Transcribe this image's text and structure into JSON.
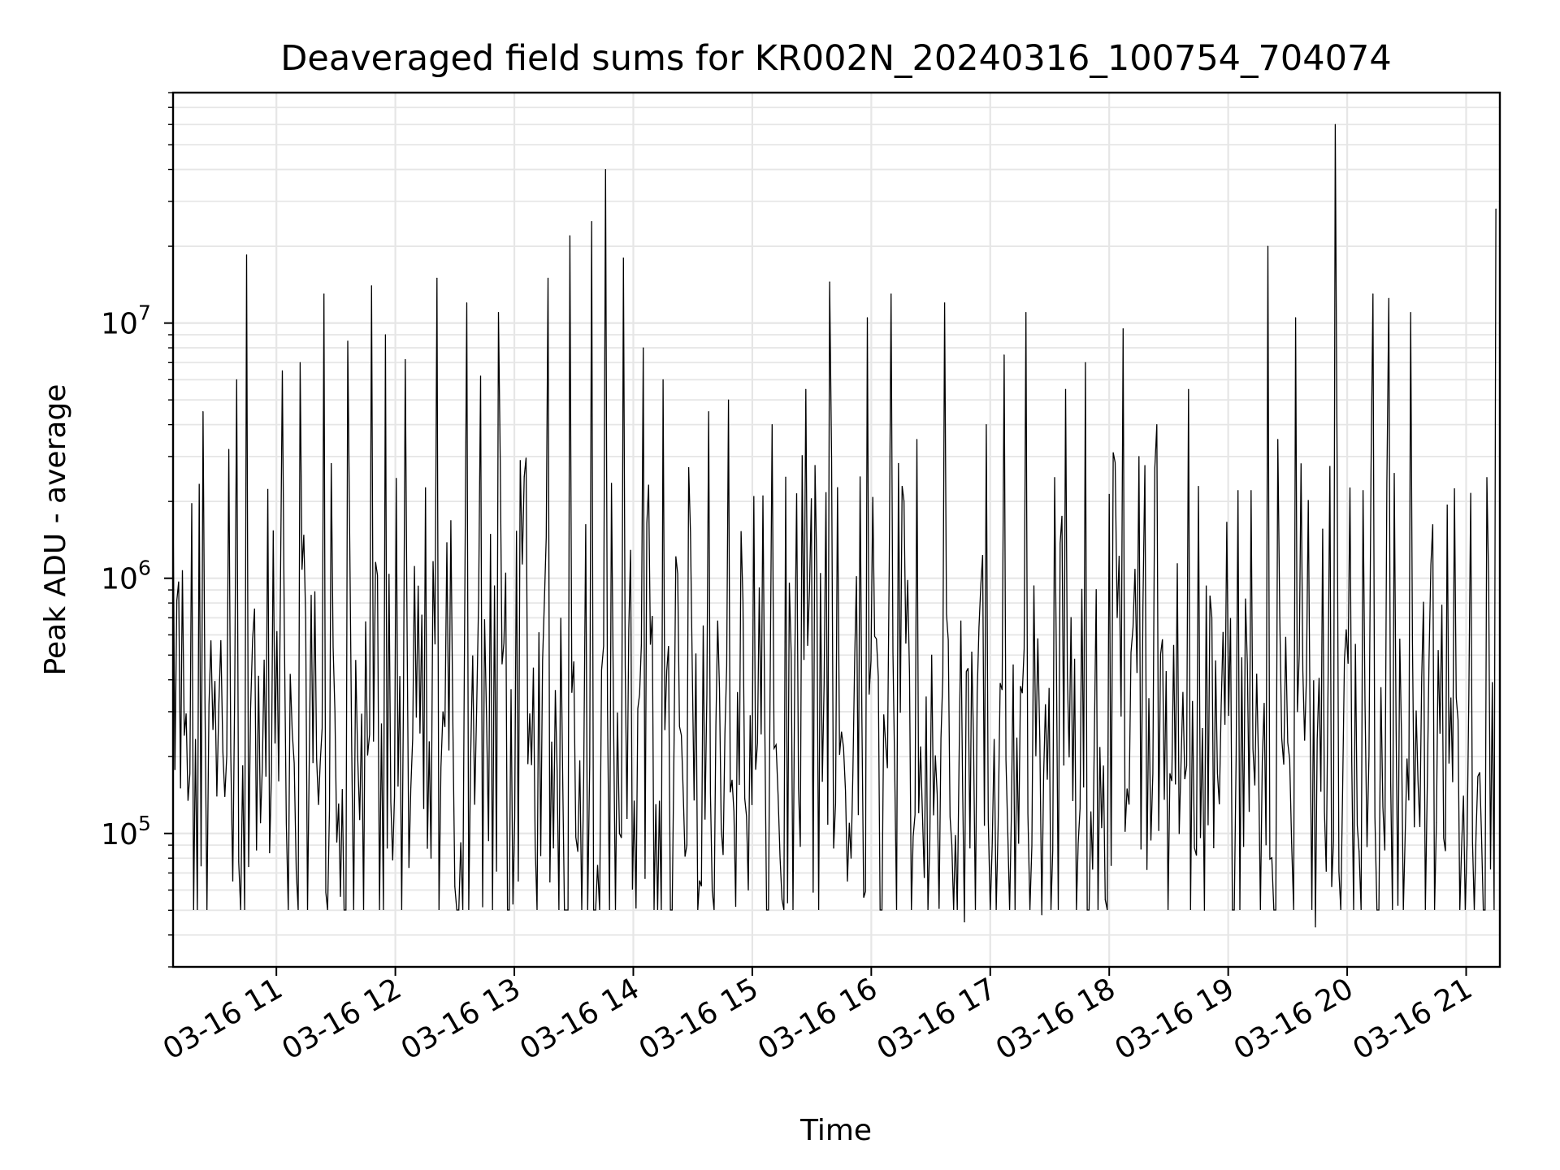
{
  "chart_data": {
    "type": "line",
    "title": "Deaveraged field sums for KR002N_20240316_100754_704074",
    "xlabel": "Time",
    "ylabel": "Peak ADU - average",
    "y_scale": "log",
    "grid": true,
    "grid_color": "#e6e6e6",
    "line_color": "#000000",
    "xlim": [
      "2024-03-16 10:07:54",
      "2024-03-16 21:17:00"
    ],
    "ylim": [
      30000,
      80000000
    ],
    "x_ticks": [
      {
        "value": "2024-03-16 11:00",
        "label": "03-16 11"
      },
      {
        "value": "2024-03-16 12:00",
        "label": "03-16 12"
      },
      {
        "value": "2024-03-16 13:00",
        "label": "03-16 13"
      },
      {
        "value": "2024-03-16 14:00",
        "label": "03-16 14"
      },
      {
        "value": "2024-03-16 15:00",
        "label": "03-16 15"
      },
      {
        "value": "2024-03-16 16:00",
        "label": "03-16 16"
      },
      {
        "value": "2024-03-16 17:00",
        "label": "03-16 17"
      },
      {
        "value": "2024-03-16 18:00",
        "label": "03-16 18"
      },
      {
        "value": "2024-03-16 19:00",
        "label": "03-16 19"
      },
      {
        "value": "2024-03-16 20:00",
        "label": "03-16 20"
      },
      {
        "value": "2024-03-16 21:00",
        "label": "03-16 21"
      }
    ],
    "y_ticks": [
      {
        "value": 100000,
        "base": "10",
        "exp": "5"
      },
      {
        "value": 1000000,
        "base": "10",
        "exp": "6"
      },
      {
        "value": 10000000,
        "base": "10",
        "exp": "7"
      }
    ],
    "series": [
      {
        "x": [
          "2024-03-16 10:07:54",
          "2024-03-16 10:23:00",
          "2024-03-16 10:30:00",
          "2024-03-16 10:36:00",
          "2024-03-16 10:40:00",
          "2024-03-16 10:45:00",
          "2024-03-16 10:52:00",
          "2024-03-16 11:03:00",
          "2024-03-16 11:12:00",
          "2024-03-16 11:24:00",
          "2024-03-16 11:36:00",
          "2024-03-16 11:41:00",
          "2024-03-16 11:48:00",
          "2024-03-16 11:55:00",
          "2024-03-16 12:05:00",
          "2024-03-16 12:18:00",
          "2024-03-16 12:21:00",
          "2024-03-16 12:30:00",
          "2024-03-16 12:36:00",
          "2024-03-16 12:43:00",
          "2024-03-16 12:52:00",
          "2024-03-16 13:02:00",
          "2024-03-16 13:05:00",
          "2024-03-16 13:17:00",
          "2024-03-16 13:28:00",
          "2024-03-16 13:32:00",
          "2024-03-16 13:39:00",
          "2024-03-16 13:46:00",
          "2024-03-16 13:53:00",
          "2024-03-16 13:55:00",
          "2024-03-16 14:05:00",
          "2024-03-16 14:15:00",
          "2024-03-16 14:27:00",
          "2024-03-16 14:38:00",
          "2024-03-16 14:48:00",
          "2024-03-16 14:58:00",
          "2024-03-16 15:10:00",
          "2024-03-16 15:15:00",
          "2024-03-16 15:27:00",
          "2024-03-16 15:39:00",
          "2024-03-16 15:48:00",
          "2024-03-16 15:58:00",
          "2024-03-16 16:10:00",
          "2024-03-16 16:23:00",
          "2024-03-16 16:37:00",
          "2024-03-16 16:47:00",
          "2024-03-16 16:58:00",
          "2024-03-16 17:07:00",
          "2024-03-16 17:18:00",
          "2024-03-16 17:26:00",
          "2024-03-16 17:38:00",
          "2024-03-16 17:48:00",
          "2024-03-16 17:58:00",
          "2024-03-16 18:07:00",
          "2024-03-16 18:15:00",
          "2024-03-16 18:24:00",
          "2024-03-16 18:40:00",
          "2024-03-16 18:48:00",
          "2024-03-16 19:04:00",
          "2024-03-16 19:20:00",
          "2024-03-16 19:25:00",
          "2024-03-16 19:34:00",
          "2024-03-16 19:44:00",
          "2024-03-16 19:54:00",
          "2024-03-16 20:06:00",
          "2024-03-16 20:13:00",
          "2024-03-16 20:21:00",
          "2024-03-16 20:32:00",
          "2024-03-16 20:45:00",
          "2024-03-16 21:05:00",
          "2024-03-16 21:15:00"
        ],
        "values": [
          2000000,
          4500000,
          140000,
          3200000,
          6000000,
          18500000,
          110000,
          6500000,
          7000000,
          13000000,
          8500000,
          200000,
          14000000,
          9000000,
          7200000,
          80000,
          15000000,
          62000,
          12000000,
          6200000,
          11000000,
          65000,
          2500000,
          15000000,
          22000000,
          85000,
          25000000,
          40000000,
          100000,
          18000000,
          8000000,
          6000000,
          90000,
          4500000,
          5000000,
          60000,
          4000000,
          55000,
          5500000,
          14500000,
          65000,
          10500000,
          13000000,
          3500000,
          12000000,
          45000,
          4000000,
          7500000,
          11000000,
          48000,
          5500000,
          7000000,
          55000,
          9500000,
          3000000,
          4000000,
          5500000,
          50000,
          200000,
          20000000,
          3500000,
          10500000,
          43000,
          60000000,
          85000,
          13000000,
          12500000,
          11000000,
          110000,
          100000,
          28000000
        ]
      }
    ]
  }
}
